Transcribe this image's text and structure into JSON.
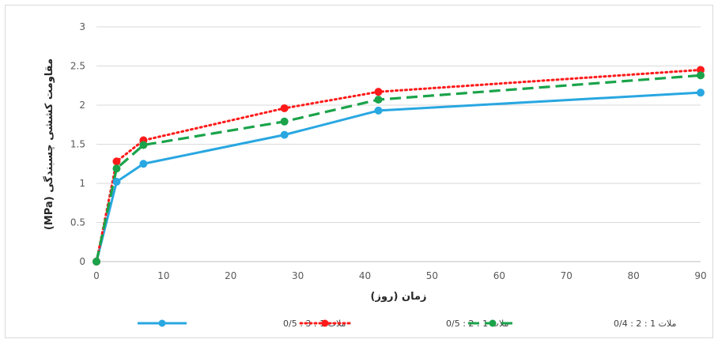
{
  "chart_data": {
    "type": "line",
    "xlabel": "زمان (روز)",
    "ylabel": "مقاومت کششی چسبندگی (MPa)",
    "xlim": [
      0,
      90
    ],
    "ylim": [
      0,
      3
    ],
    "x_ticks": [
      "0",
      "10",
      "20",
      "30",
      "40",
      "50",
      "60",
      "70",
      "80",
      "90"
    ],
    "y_ticks": [
      "0",
      "0.5",
      "1",
      "1.5",
      "2",
      "2.5",
      "3"
    ],
    "grid": "horizontal",
    "legend_position": "bottom",
    "series": [
      {
        "name": "ملات 1 : 3 : 0/5",
        "color": "#29a7e1",
        "line_style": "solid",
        "x": [
          0,
          3,
          7,
          28,
          42,
          90
        ],
        "y": [
          0,
          1.02,
          1.25,
          1.62,
          1.93,
          2.16
        ]
      },
      {
        "name": "ملات 1 : 2 : 0/5",
        "color": "#ff1a1a",
        "line_style": "dotted",
        "x": [
          0,
          3,
          7,
          28,
          42,
          90
        ],
        "y": [
          0,
          1.28,
          1.55,
          1.96,
          2.17,
          2.45
        ]
      },
      {
        "name": "ملات 1 : 2 : 0/4",
        "color": "#1aa34a",
        "line_style": "dashed",
        "x": [
          0,
          3,
          7,
          28,
          42,
          90
        ],
        "y": [
          0,
          1.19,
          1.49,
          1.79,
          2.07,
          2.38
        ]
      }
    ]
  }
}
